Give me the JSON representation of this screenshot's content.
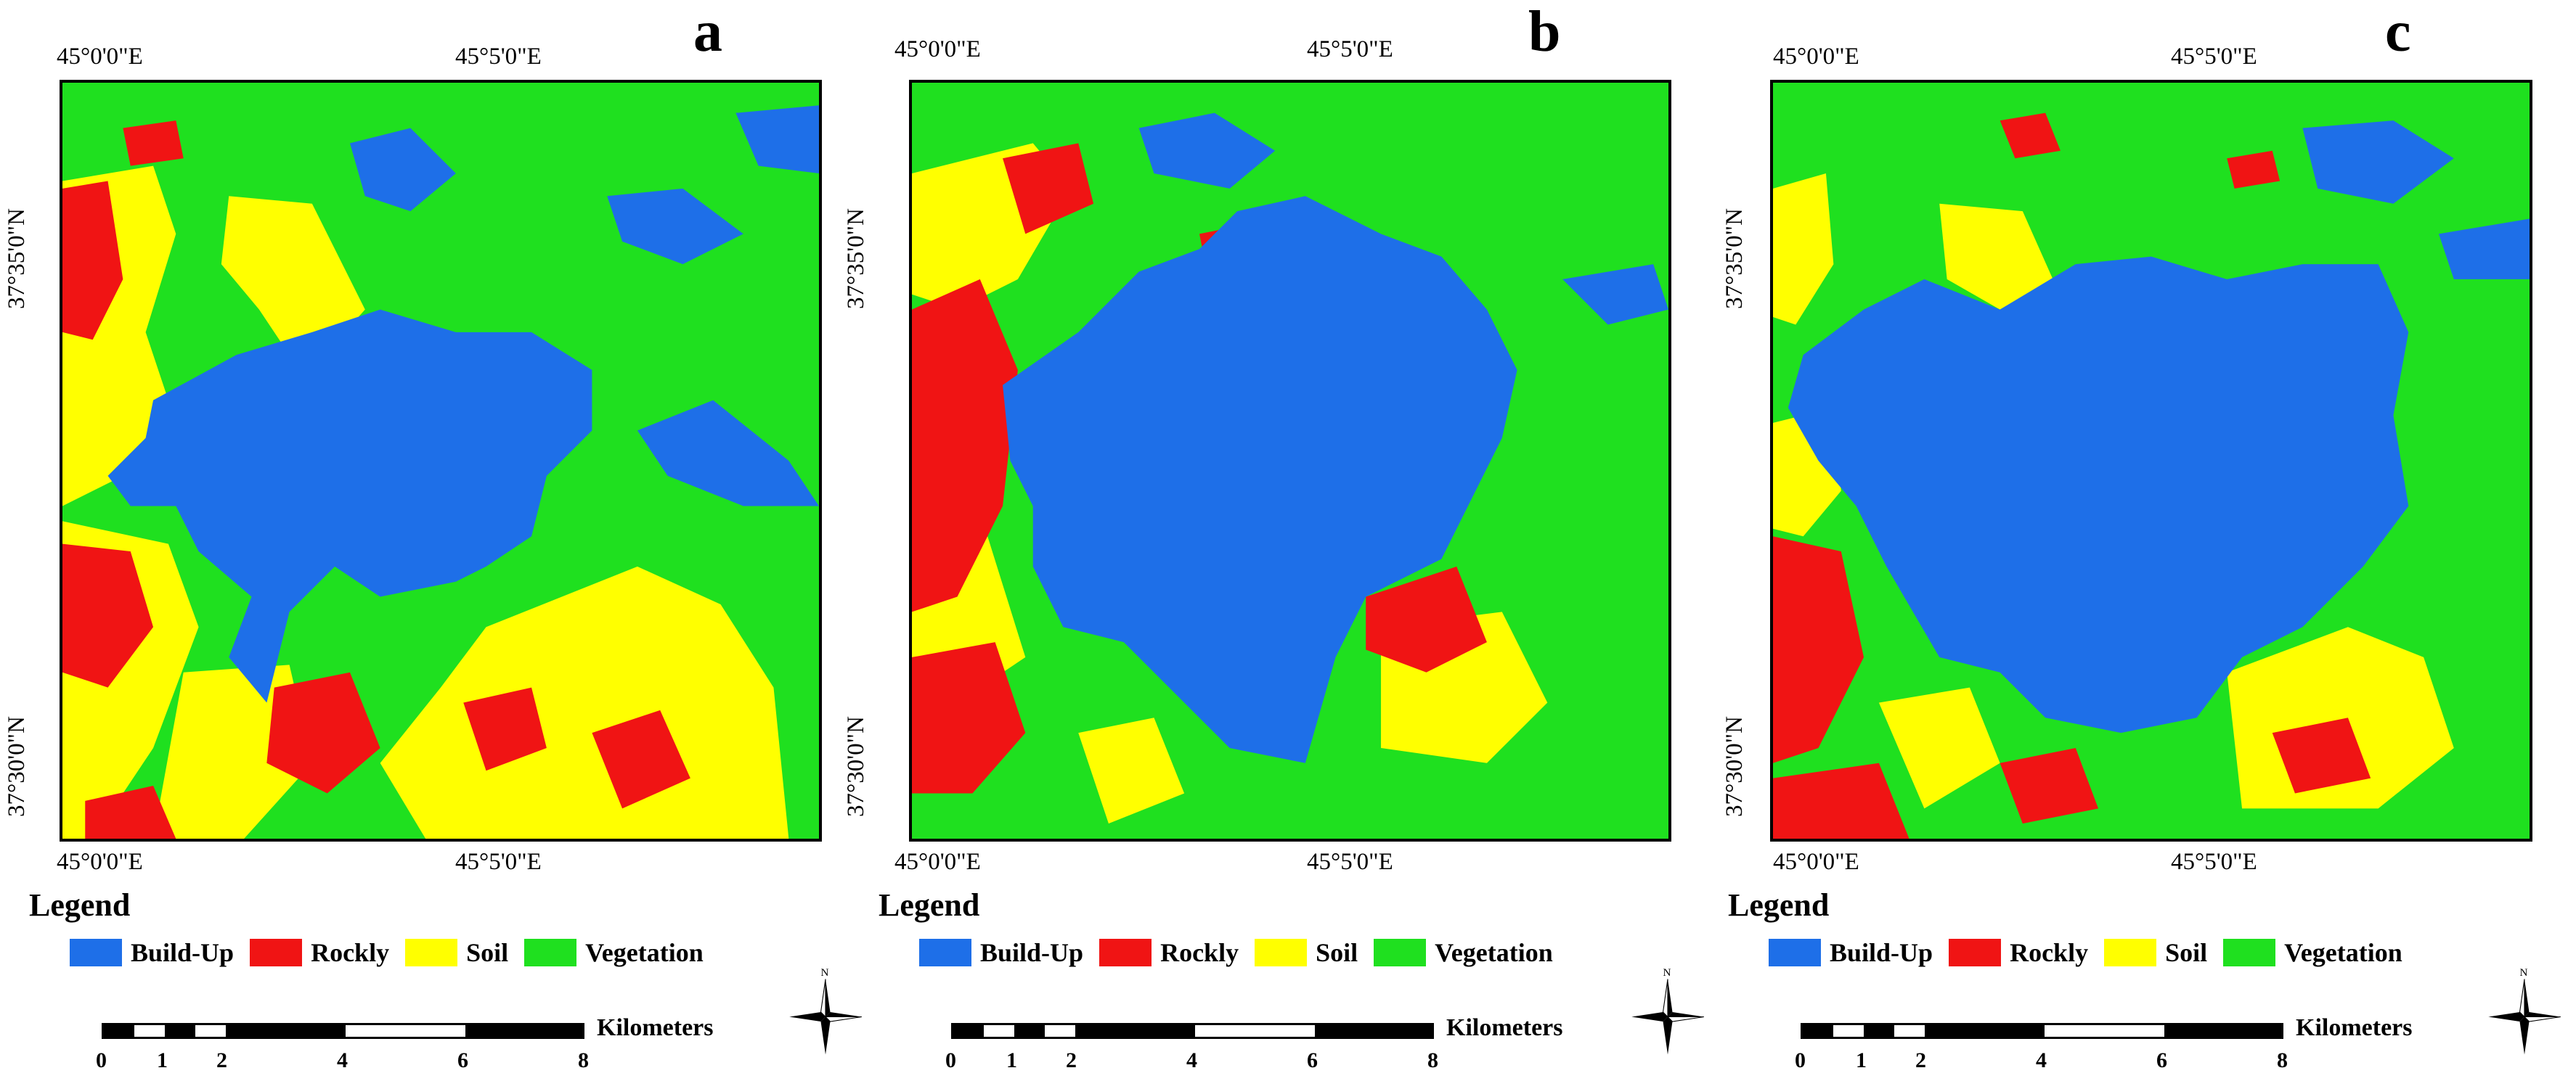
{
  "panels": [
    {
      "letter": "a",
      "lon_labels": [
        "45°0'0\"E",
        "45°5'0\"E"
      ],
      "lat_labels": [
        "37°35'0\"N",
        "37°30'0\"N"
      ]
    },
    {
      "letter": "b",
      "lon_labels": [
        "45°0'0\"E",
        "45°5'0\"E"
      ],
      "lat_labels": [
        "37°35'0\"N",
        "37°30'0\"N"
      ]
    },
    {
      "letter": "c",
      "lon_labels": [
        "45°0'0\"E",
        "45°5'0\"E"
      ],
      "lat_labels": [
        "37°35'0\"N",
        "37°30'0\"N"
      ]
    }
  ],
  "legend": {
    "title": "Legend",
    "items": [
      {
        "label": "Build-Up",
        "color": "#1e6fe8"
      },
      {
        "label": "Rockly",
        "color": "#f01414"
      },
      {
        "label": "Soil",
        "color": "#ffff00"
      },
      {
        "label": "Vegetation",
        "color": "#1fe01f"
      }
    ]
  },
  "scale": {
    "title": "Kilometers",
    "ticks": [
      "0",
      "1",
      "2",
      "4",
      "6",
      "8"
    ]
  },
  "compass": {
    "label": "N"
  }
}
